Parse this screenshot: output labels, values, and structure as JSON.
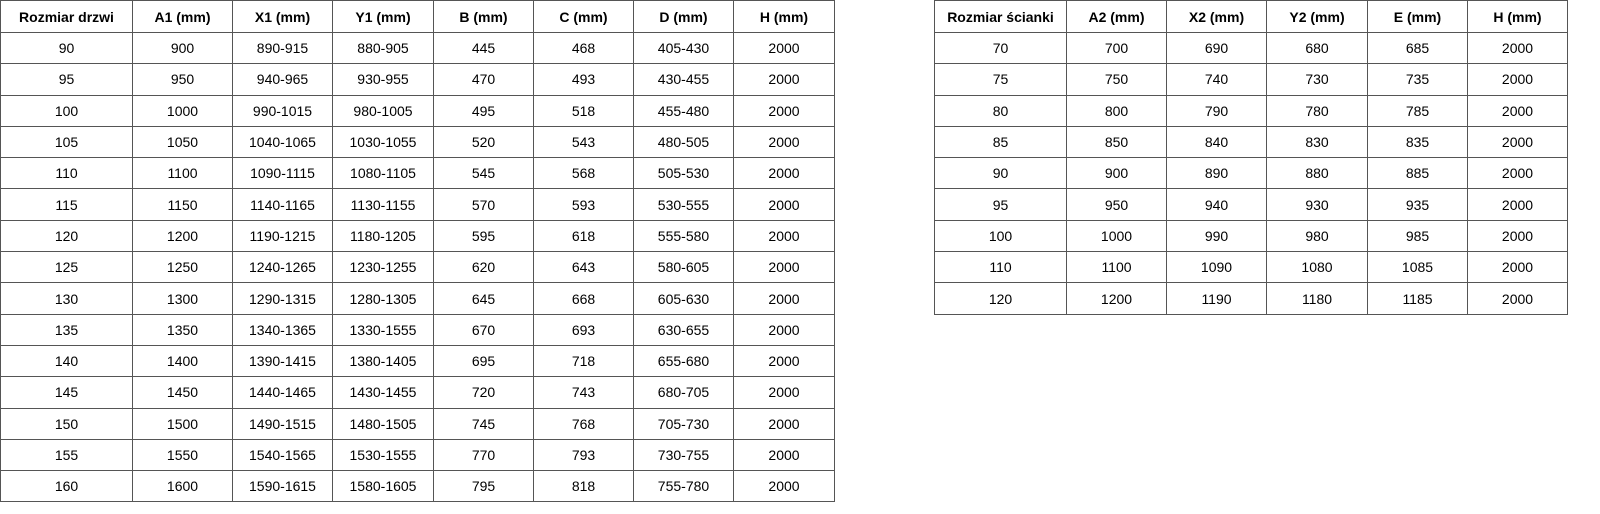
{
  "doors_table": {
    "headers": [
      "Rozmiar drzwi",
      "A1 (mm)",
      "X1 (mm)",
      "Y1 (mm)",
      "B (mm)",
      "C (mm)",
      "D (mm)",
      "H (mm)"
    ],
    "rows": [
      [
        "90",
        "900",
        "890-915",
        "880-905",
        "445",
        "468",
        "405-430",
        "2000"
      ],
      [
        "95",
        "950",
        "940-965",
        "930-955",
        "470",
        "493",
        "430-455",
        "2000"
      ],
      [
        "100",
        "1000",
        "990-1015",
        "980-1005",
        "495",
        "518",
        "455-480",
        "2000"
      ],
      [
        "105",
        "1050",
        "1040-1065",
        "1030-1055",
        "520",
        "543",
        "480-505",
        "2000"
      ],
      [
        "110",
        "1100",
        "1090-1115",
        "1080-1105",
        "545",
        "568",
        "505-530",
        "2000"
      ],
      [
        "115",
        "1150",
        "1140-1165",
        "1130-1155",
        "570",
        "593",
        "530-555",
        "2000"
      ],
      [
        "120",
        "1200",
        "1190-1215",
        "1180-1205",
        "595",
        "618",
        "555-580",
        "2000"
      ],
      [
        "125",
        "1250",
        "1240-1265",
        "1230-1255",
        "620",
        "643",
        "580-605",
        "2000"
      ],
      [
        "130",
        "1300",
        "1290-1315",
        "1280-1305",
        "645",
        "668",
        "605-630",
        "2000"
      ],
      [
        "135",
        "1350",
        "1340-1365",
        "1330-1555",
        "670",
        "693",
        "630-655",
        "2000"
      ],
      [
        "140",
        "1400",
        "1390-1415",
        "1380-1405",
        "695",
        "718",
        "655-680",
        "2000"
      ],
      [
        "145",
        "1450",
        "1440-1465",
        "1430-1455",
        "720",
        "743",
        "680-705",
        "2000"
      ],
      [
        "150",
        "1500",
        "1490-1515",
        "1480-1505",
        "745",
        "768",
        "705-730",
        "2000"
      ],
      [
        "155",
        "1550",
        "1540-1565",
        "1530-1555",
        "770",
        "793",
        "730-755",
        "2000"
      ],
      [
        "160",
        "1600",
        "1590-1615",
        "1580-1605",
        "795",
        "818",
        "755-780",
        "2000"
      ]
    ]
  },
  "wall_table": {
    "headers": [
      "Rozmiar ścianki",
      "A2 (mm)",
      "X2 (mm)",
      "Y2 (mm)",
      "E (mm)",
      "H (mm)"
    ],
    "rows": [
      [
        "70",
        "700",
        "690",
        "680",
        "685",
        "2000"
      ],
      [
        "75",
        "750",
        "740",
        "730",
        "735",
        "2000"
      ],
      [
        "80",
        "800",
        "790",
        "780",
        "785",
        "2000"
      ],
      [
        "85",
        "850",
        "840",
        "830",
        "835",
        "2000"
      ],
      [
        "90",
        "900",
        "890",
        "880",
        "885",
        "2000"
      ],
      [
        "95",
        "950",
        "940",
        "930",
        "935",
        "2000"
      ],
      [
        "100",
        "1000",
        "990",
        "980",
        "985",
        "2000"
      ],
      [
        "110",
        "1100",
        "1090",
        "1080",
        "1085",
        "2000"
      ],
      [
        "120",
        "1200",
        "1190",
        "1180",
        "1185",
        "2000"
      ]
    ]
  }
}
